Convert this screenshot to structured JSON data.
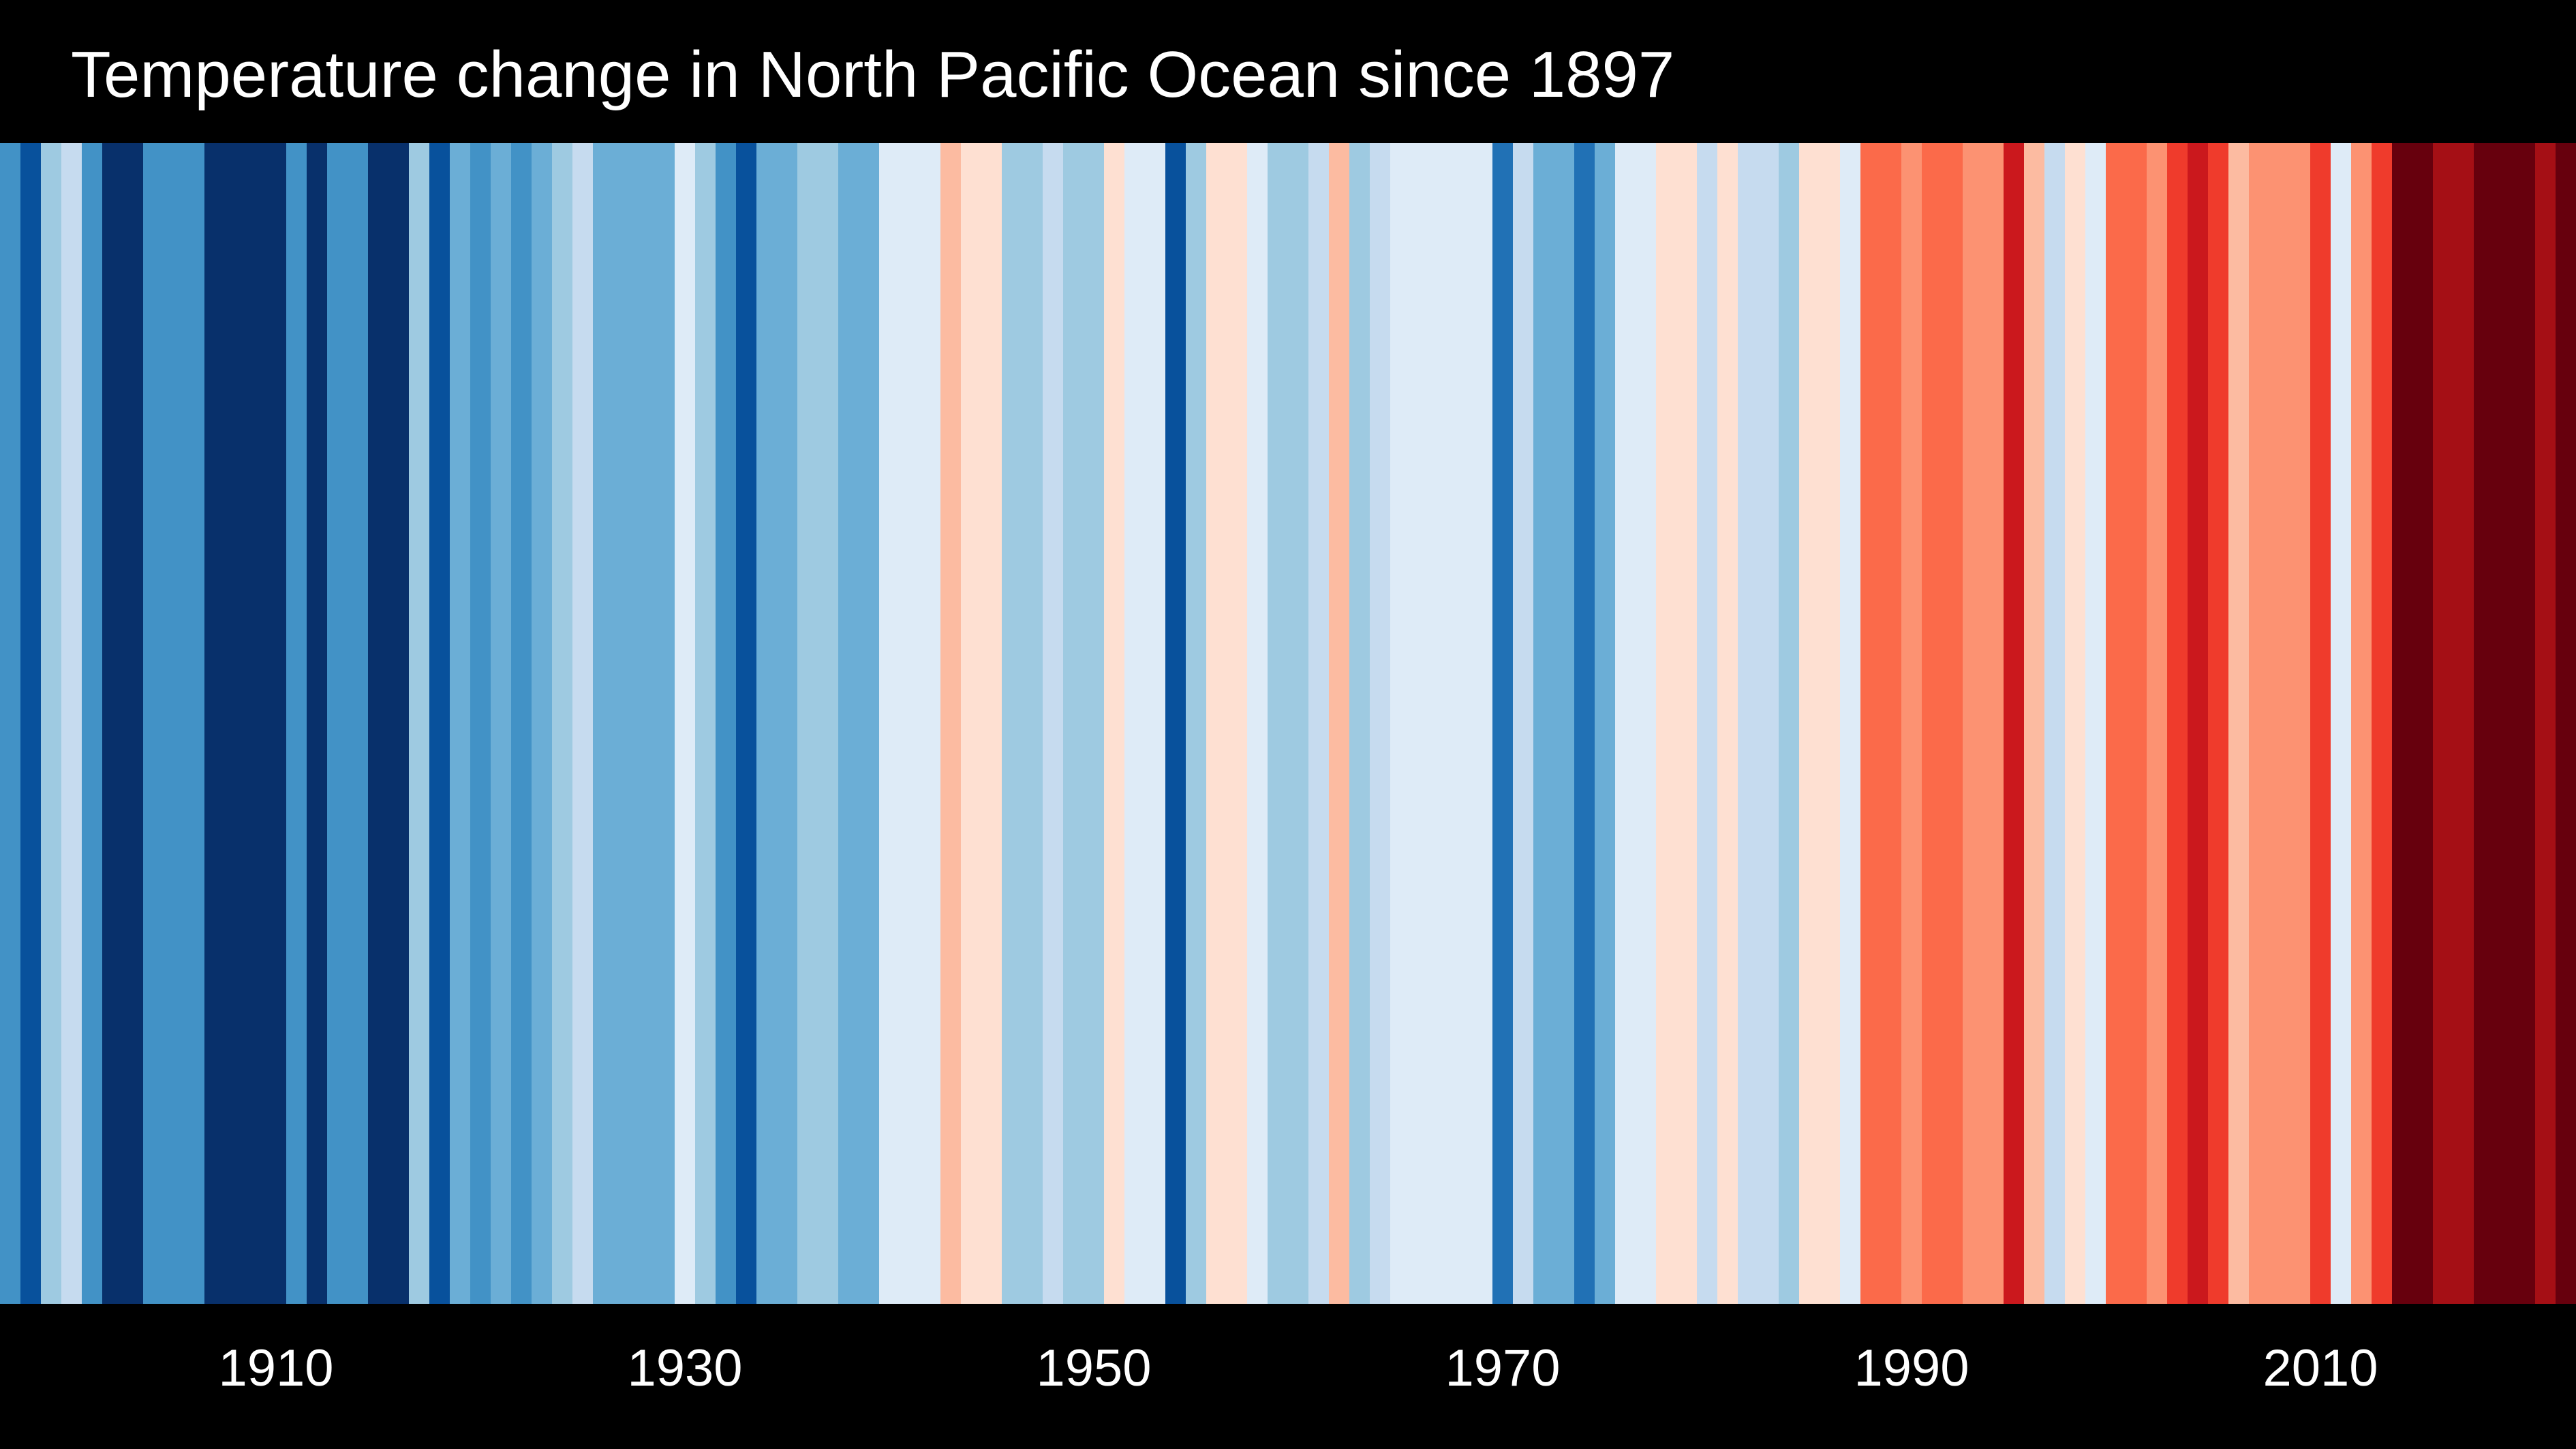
{
  "chart_data": {
    "type": "heatmap",
    "title": "Temperature change in North Pacific Ocean since 1897",
    "x_start": 1897,
    "x_end": 2022,
    "xticks": [
      1910,
      1930,
      1950,
      1970,
      1990,
      2010
    ],
    "xtick_labels": [
      "1910",
      "1930",
      "1950",
      "1970",
      "1990",
      "2010"
    ],
    "palette": [
      "#08306b",
      "#08519c",
      "#2171b5",
      "#4292c6",
      "#6baed6",
      "#9ecae1",
      "#c6dbef",
      "#deebf7",
      "#fee0d2",
      "#fcbba1",
      "#fc9272",
      "#fb6a4a",
      "#ef3b2c",
      "#cb181d",
      "#a50f15",
      "#67000d"
    ],
    "colors": {
      "background": "#000000",
      "text": "#ffffff"
    },
    "years": [
      1897,
      1898,
      1899,
      1900,
      1901,
      1902,
      1903,
      1904,
      1905,
      1906,
      1907,
      1908,
      1909,
      1910,
      1911,
      1912,
      1913,
      1914,
      1915,
      1916,
      1917,
      1918,
      1919,
      1920,
      1921,
      1922,
      1923,
      1924,
      1925,
      1926,
      1927,
      1928,
      1929,
      1930,
      1931,
      1932,
      1933,
      1934,
      1935,
      1936,
      1937,
      1938,
      1939,
      1940,
      1941,
      1942,
      1943,
      1944,
      1945,
      1946,
      1947,
      1948,
      1949,
      1950,
      1951,
      1952,
      1953,
      1954,
      1955,
      1956,
      1957,
      1958,
      1959,
      1960,
      1961,
      1962,
      1963,
      1964,
      1965,
      1966,
      1967,
      1968,
      1969,
      1970,
      1971,
      1972,
      1973,
      1974,
      1975,
      1976,
      1977,
      1978,
      1979,
      1980,
      1981,
      1982,
      1983,
      1984,
      1985,
      1986,
      1987,
      1988,
      1989,
      1990,
      1991,
      1992,
      1993,
      1994,
      1995,
      1996,
      1997,
      1998,
      1999,
      2000,
      2001,
      2002,
      2003,
      2004,
      2005,
      2006,
      2007,
      2008,
      2009,
      2010,
      2011,
      2012,
      2013,
      2014,
      2015,
      2016,
      2017,
      2018,
      2019,
      2020,
      2021,
      2022
    ],
    "levels": [
      3,
      1,
      5,
      6,
      3,
      0,
      0,
      3,
      3,
      3,
      0,
      0,
      0,
      0,
      3,
      0,
      3,
      3,
      0,
      0,
      5,
      1,
      4,
      3,
      4,
      3,
      4,
      5,
      6,
      4,
      4,
      4,
      4,
      7,
      5,
      3,
      1,
      4,
      4,
      5,
      5,
      4,
      4,
      7,
      7,
      7,
      9,
      8,
      8,
      5,
      5,
      6,
      5,
      5,
      8,
      7,
      7,
      1,
      5,
      8,
      8,
      7,
      5,
      5,
      6,
      9,
      5,
      6,
      7,
      7,
      7,
      7,
      7,
      2,
      6,
      4,
      4,
      2,
      4,
      7,
      7,
      8,
      8,
      6,
      8,
      6,
      6,
      5,
      8,
      8,
      7,
      11,
      11,
      10,
      11,
      11,
      10,
      10,
      13,
      9,
      6,
      8,
      7,
      11,
      11,
      10,
      12,
      13,
      12,
      9,
      10,
      10,
      10,
      12,
      7,
      10,
      12,
      15,
      15,
      14,
      14,
      15,
      15,
      15,
      14,
      15
    ]
  }
}
